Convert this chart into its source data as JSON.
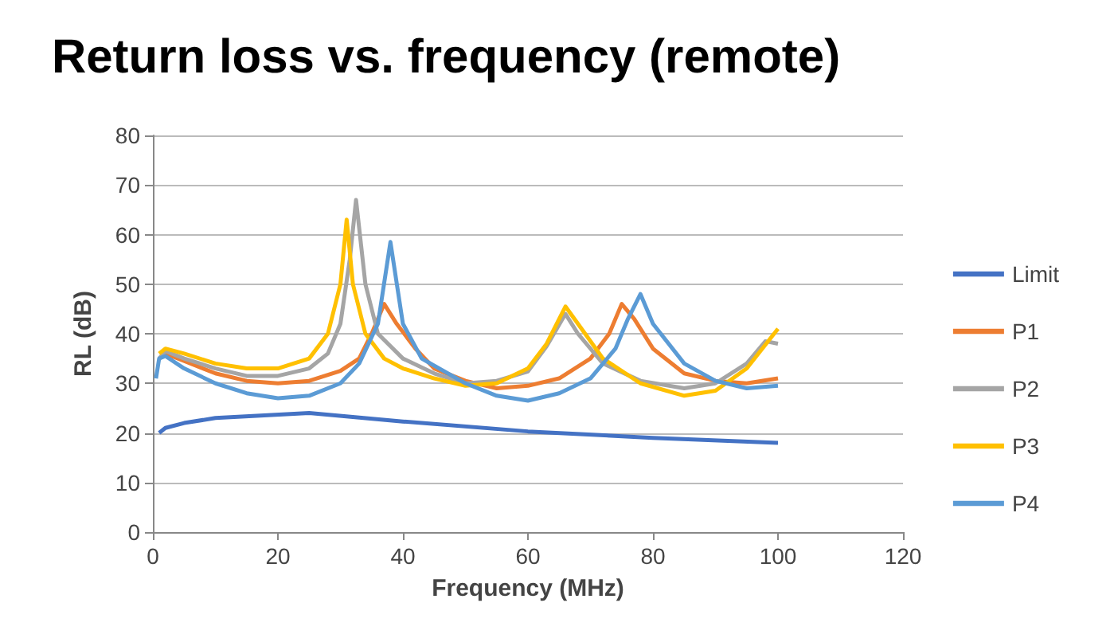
{
  "chart_data": {
    "type": "line",
    "title": "Return loss vs. frequency (remote)",
    "xlabel": "Frequency (MHz)",
    "ylabel": "RL (dB)",
    "xlim": [
      0,
      120
    ],
    "xticks": [
      0,
      20,
      40,
      60,
      80,
      100,
      120
    ],
    "ylim": [
      0,
      80
    ],
    "yticks": [
      0,
      10,
      20,
      30,
      40,
      50,
      60,
      70,
      80
    ],
    "grid": "y",
    "legend": "right",
    "marker": "none",
    "line_style": "solid",
    "series": [
      {
        "name": "Limit",
        "color": "#4472c4",
        "x": [
          1,
          2,
          5,
          10,
          25,
          40,
          60,
          80,
          100
        ],
        "values": [
          20,
          21,
          22,
          23,
          24,
          22.3,
          20.3,
          19,
          18
        ]
      },
      {
        "name": "P1",
        "color": "#ed7d31",
        "x": [
          1,
          2,
          5,
          10,
          15,
          20,
          25,
          30,
          33,
          35,
          37,
          39,
          42,
          45,
          50,
          55,
          60,
          65,
          70,
          73,
          75,
          77,
          80,
          85,
          90,
          95,
          100
        ],
        "values": [
          35,
          36,
          34.5,
          32,
          30.5,
          30,
          30.5,
          32.5,
          35,
          40,
          46,
          42,
          37,
          33,
          30.5,
          29,
          29.5,
          31,
          35,
          40,
          46,
          43,
          37,
          32,
          30.5,
          30,
          31
        ]
      },
      {
        "name": "P2",
        "color": "#a5a5a5",
        "x": [
          1,
          2,
          5,
          10,
          15,
          20,
          25,
          28,
          30,
          31.5,
          32.5,
          34,
          36,
          40,
          45,
          50,
          55,
          60,
          63,
          66,
          68,
          72,
          78,
          85,
          90,
          95,
          98,
          100
        ],
        "values": [
          35,
          36.5,
          35,
          33,
          31.5,
          31.5,
          33,
          36,
          42,
          55,
          67,
          50,
          40,
          35,
          32,
          30,
          30.5,
          32.4,
          37.5,
          44,
          40,
          34,
          30.5,
          29,
          30,
          34,
          38.5,
          38
        ]
      },
      {
        "name": "P3",
        "color": "#ffc000",
        "x": [
          1,
          2,
          5,
          10,
          15,
          20,
          25,
          28,
          30,
          31,
          32,
          34,
          37,
          40,
          45,
          50,
          55,
          60,
          63,
          66,
          68,
          72,
          78,
          85,
          90,
          95,
          100
        ],
        "values": [
          36,
          37,
          36,
          34,
          33,
          33,
          35,
          40,
          50,
          63,
          50,
          40,
          35,
          33,
          31,
          29.5,
          30,
          33,
          38,
          45.5,
          42,
          35,
          30,
          27.5,
          28.5,
          33,
          41
        ]
      },
      {
        "name": "P4",
        "color": "#5b9bd5",
        "x": [
          0.5,
          1,
          2,
          5,
          10,
          15,
          20,
          25,
          30,
          33,
          36,
          38,
          40,
          43,
          50,
          55,
          60,
          65,
          70,
          74,
          76,
          78,
          80,
          85,
          90,
          95,
          100
        ],
        "values": [
          31,
          35,
          35.5,
          33,
          30,
          28,
          27,
          27.5,
          30,
          34,
          42,
          58.5,
          42,
          35,
          30,
          27.5,
          26.5,
          28,
          31,
          37,
          43,
          48,
          42,
          34,
          30.5,
          29,
          29.5
        ]
      }
    ]
  }
}
